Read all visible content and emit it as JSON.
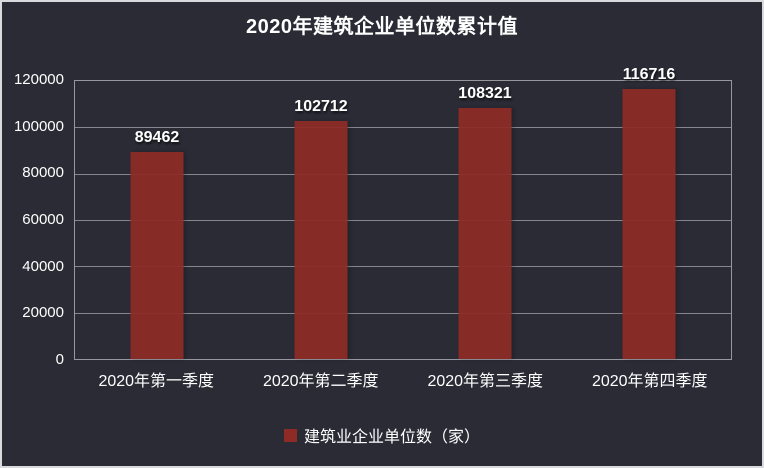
{
  "title": "2020年建筑企业单位数累计值",
  "colors": {
    "background": "#2a2b35",
    "bar": "#8f2b27",
    "gridline": "#97979f",
    "text": "#ffffff",
    "frame_border": "#d9dade"
  },
  "legend": {
    "label": "建筑业企业单位数（家）",
    "position": "bottom",
    "marker": "square-icon"
  },
  "chart_data": {
    "type": "bar",
    "title": "2020年建筑企业单位数累计值",
    "categories": [
      "2020年第一季度",
      "2020年第二季度",
      "2020年第三季度",
      "2020年第四季度"
    ],
    "values": [
      89462,
      102712,
      108321,
      116716
    ],
    "series": [
      {
        "name": "建筑业企业单位数（家）",
        "values": [
          89462,
          102712,
          108321,
          116716
        ]
      }
    ],
    "xlabel": "",
    "ylabel": "",
    "ylim": [
      0,
      120000
    ],
    "y_ticks": [
      0,
      20000,
      40000,
      60000,
      80000,
      100000,
      120000
    ],
    "grid": "horizontal",
    "legend_position": "bottom",
    "data_labels_shown": true
  }
}
